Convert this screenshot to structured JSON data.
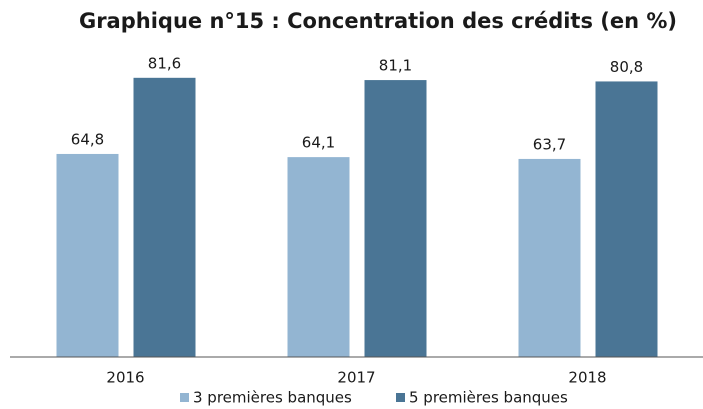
{
  "chart_data": {
    "type": "bar",
    "title": "Graphique n°15 : Concentration des crédits (en %)",
    "categories": [
      "2016",
      "2017",
      "2018"
    ],
    "series": [
      {
        "name": "3 premières banques",
        "color": "#93b5d2",
        "values": [
          64.8,
          64.1,
          63.7
        ],
        "value_labels": [
          "64,8",
          "64,1",
          "63,7"
        ]
      },
      {
        "name": "5 premières banques",
        "color": "#4a7595",
        "values": [
          81.6,
          81.1,
          80.8
        ],
        "value_labels": [
          "81,6",
          "81,1",
          "80,8"
        ]
      }
    ],
    "ylim": [
      20,
      82
    ]
  }
}
